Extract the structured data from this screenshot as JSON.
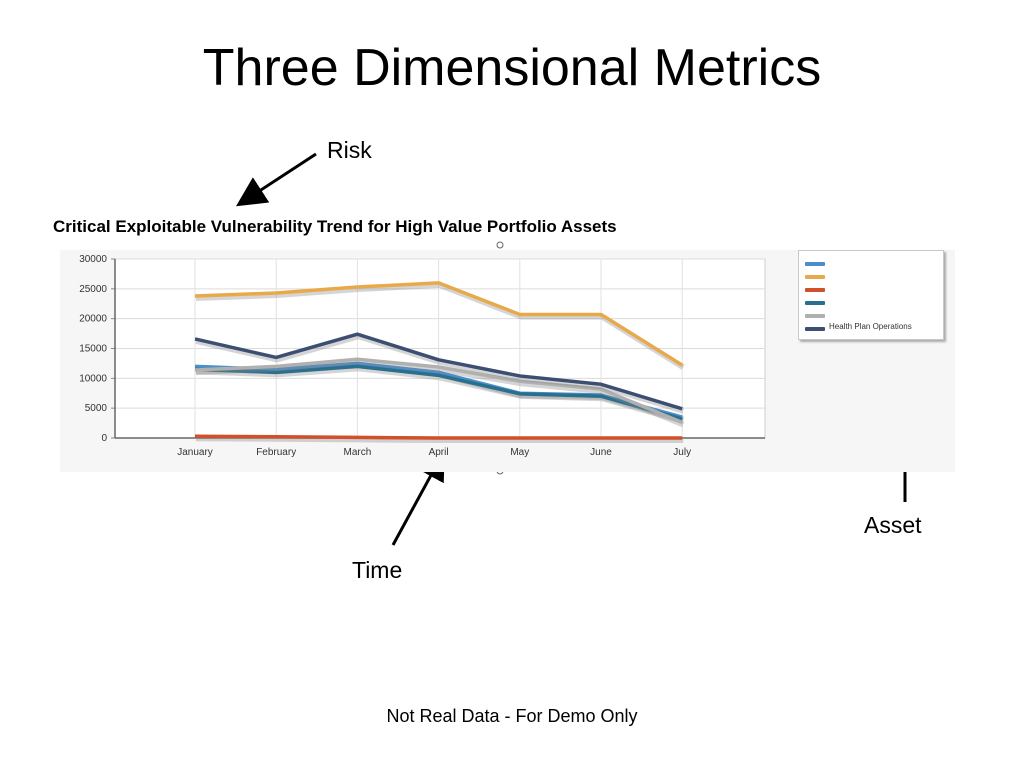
{
  "slide": {
    "title": "Three Dimensional Metrics",
    "footer": "Not Real Data - For Demo Only"
  },
  "callouts": {
    "risk": "Risk",
    "time": "Time",
    "asset": "Asset"
  },
  "chart_data": {
    "type": "line",
    "title": "Critical Exploitable Vulnerability Trend for High Value Portfolio Assets",
    "xlabel": "",
    "ylabel": "",
    "categories": [
      "January",
      "February",
      "March",
      "April",
      "May",
      "June",
      "July"
    ],
    "ylim": [
      0,
      30000
    ],
    "yticks": [
      0,
      5000,
      10000,
      15000,
      20000,
      25000,
      30000
    ],
    "ytick_labels": [
      "0",
      "5000",
      "10000",
      "15000",
      "20000",
      "25000",
      "30000"
    ],
    "grid": true,
    "legend_position": "right",
    "series": [
      {
        "color": "#4a8fc9",
        "values": [
          12000,
          11500,
          12500,
          11000,
          7500,
          7200,
          3500
        ]
      },
      {
        "color": "#e8a94a",
        "values": [
          23800,
          24300,
          25300,
          26000,
          20700,
          20700,
          12200
        ]
      },
      {
        "color": "#d0502a",
        "values": [
          300,
          200,
          100,
          0,
          0,
          0,
          0
        ]
      },
      {
        "color": "#2a6f8e",
        "values": [
          11500,
          11000,
          12000,
          10500,
          7400,
          7000,
          3200
        ]
      },
      {
        "color": "#b0b0b0",
        "values": [
          11400,
          12000,
          13200,
          11900,
          9500,
          8200,
          2600
        ]
      },
      {
        "color": "#3c4f72",
        "values": [
          16600,
          13500,
          17400,
          13100,
          10400,
          9000,
          4900
        ]
      }
    ],
    "legend_entries": [
      {
        "color": "#4a8fc9",
        "label": ""
      },
      {
        "color": "#e8a94a",
        "label": ""
      },
      {
        "color": "#d0502a",
        "label": ""
      },
      {
        "color": "#2a6f8e",
        "label": ""
      },
      {
        "color": "#b0b0b0",
        "label": ""
      },
      {
        "color": "#3c4f72",
        "label": "Health Plan Operations"
      }
    ]
  }
}
